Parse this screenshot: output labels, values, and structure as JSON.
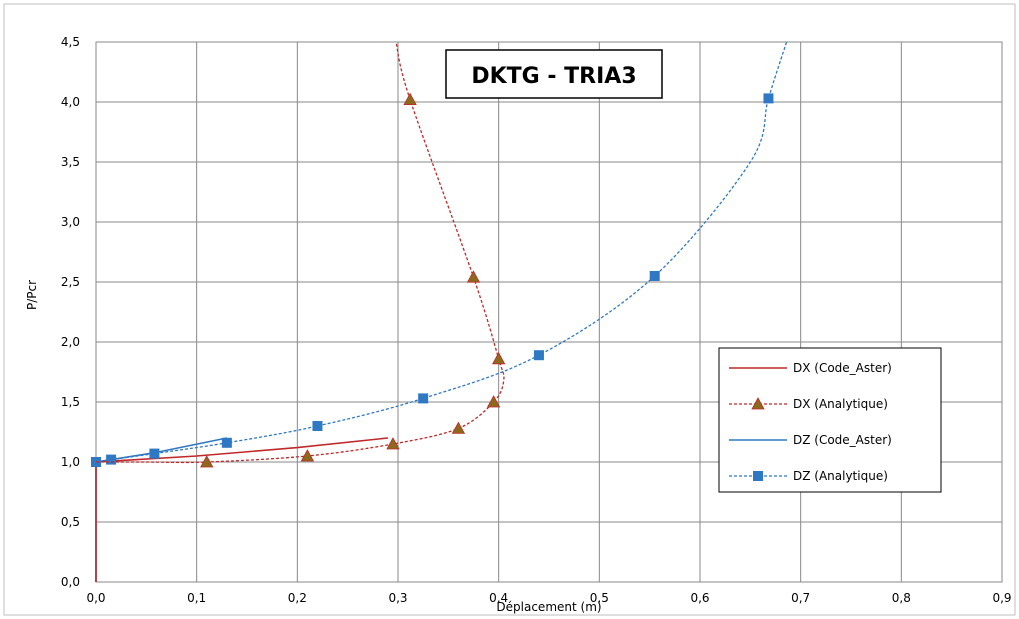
{
  "chart_data": {
    "type": "line",
    "title": "DKTG - TRIA3",
    "xlabel": "Déplacement  (m)",
    "ylabel": "P/Pcr",
    "xlim": [
      0,
      0.9
    ],
    "ylim": [
      0,
      4.5
    ],
    "x_ticks": [
      "0,0",
      "0,1",
      "0,2",
      "0,3",
      "0,4",
      "0,5",
      "0,6",
      "0,7",
      "0,8",
      "0,9"
    ],
    "y_ticks": [
      "0,0",
      "0,5",
      "1,0",
      "1,5",
      "2,0",
      "2,5",
      "3,0",
      "3,5",
      "4,0",
      "4,5"
    ],
    "grid": true,
    "legend_position": "right",
    "colors": {
      "dx": "#c0282a",
      "dz": "#2f78c4",
      "dx_marker": "#8b6a1c"
    },
    "series": [
      {
        "name": "DX (Code_Aster)",
        "style": "solid",
        "marker": "none",
        "color": "#c0282a",
        "x": [
          0.0,
          0.0,
          0.02,
          0.1,
          0.2,
          0.29
        ],
        "y": [
          0.0,
          1.0,
          1.01,
          1.05,
          1.12,
          1.2
        ]
      },
      {
        "name": "DX (Analytique)",
        "style": "dashed",
        "marker": "triangle",
        "color": "#c0282a",
        "x": [
          0.0,
          0.05,
          0.11,
          0.21,
          0.295,
          0.36,
          0.395,
          0.405,
          0.4,
          0.375,
          0.312,
          0.298
        ],
        "y": [
          1.0,
          1.0,
          1.0,
          1.05,
          1.15,
          1.28,
          1.5,
          1.68,
          1.86,
          2.54,
          4.02,
          4.5
        ],
        "marker_x": [
          0.11,
          0.21,
          0.295,
          0.36,
          0.395,
          0.4,
          0.375,
          0.312
        ],
        "marker_y": [
          1.0,
          1.05,
          1.15,
          1.28,
          1.5,
          1.86,
          2.54,
          4.02
        ]
      },
      {
        "name": "DZ (Code_Aster)",
        "style": "solid",
        "marker": "none",
        "color": "#2f78c4",
        "x": [
          0.0,
          0.0,
          0.015,
          0.06,
          0.13
        ],
        "y": [
          0.0,
          1.0,
          1.02,
          1.08,
          1.2
        ]
      },
      {
        "name": "DZ (Analytique)",
        "style": "dashed",
        "marker": "square",
        "color": "#2f78c4",
        "x": [
          0.0,
          0.015,
          0.058,
          0.13,
          0.22,
          0.325,
          0.44,
          0.555,
          0.65,
          0.668,
          0.686
        ],
        "y": [
          1.0,
          1.02,
          1.07,
          1.16,
          1.3,
          1.53,
          1.89,
          2.55,
          3.5,
          4.03,
          4.5
        ],
        "marker_x": [
          0.0,
          0.015,
          0.058,
          0.13,
          0.22,
          0.325,
          0.44,
          0.555,
          0.668
        ],
        "marker_y": [
          1.0,
          1.02,
          1.07,
          1.16,
          1.3,
          1.53,
          1.89,
          2.55,
          4.03
        ]
      }
    ]
  }
}
